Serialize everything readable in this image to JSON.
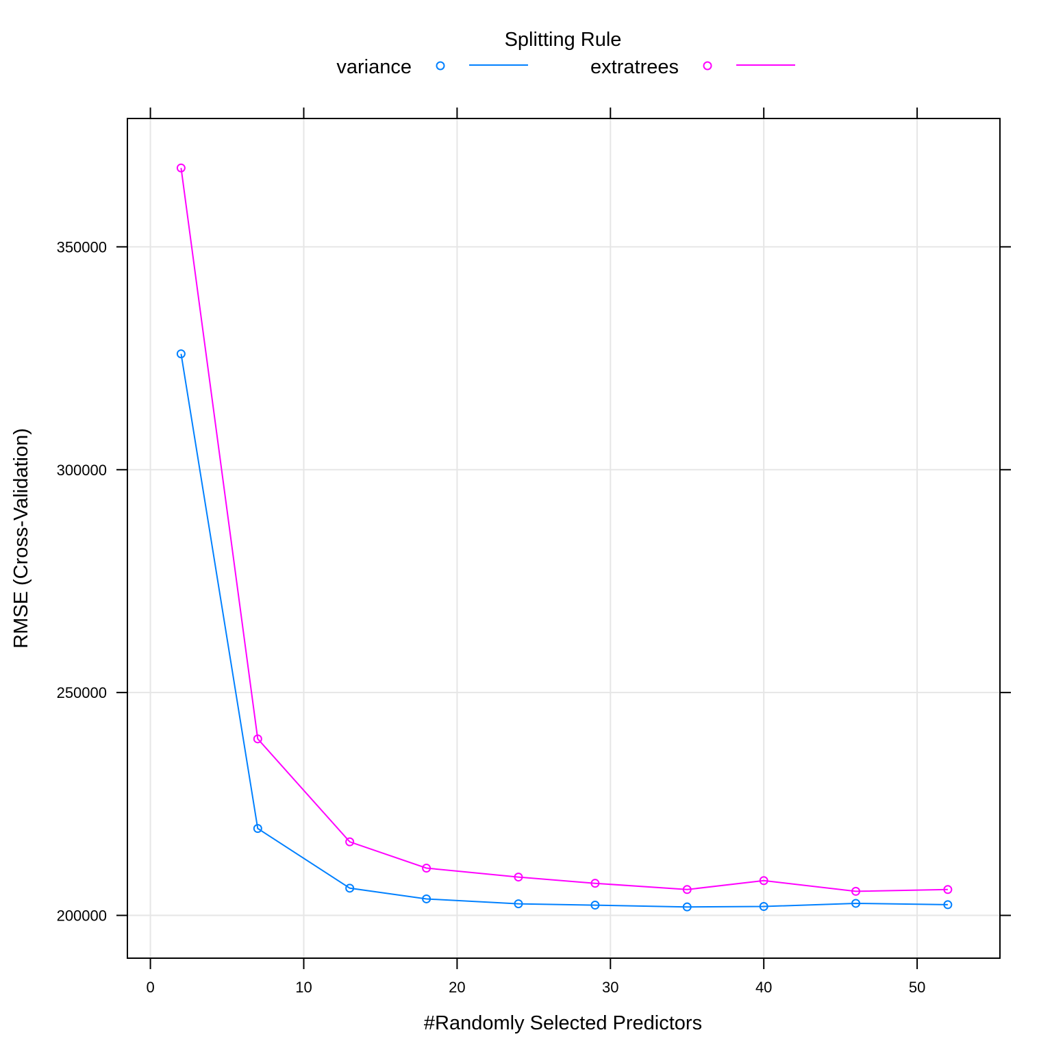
{
  "chart_data": {
    "type": "line",
    "title": "",
    "xlabel": "#Randomly Selected Predictors",
    "ylabel": "RMSE (Cross-Validation)",
    "xlim": [
      -1.5,
      55.4
    ],
    "ylim": [
      190400,
      378800
    ],
    "x_ticks": [
      0,
      10,
      20,
      30,
      40,
      50
    ],
    "y_ticks": [
      200000,
      250000,
      300000,
      350000
    ],
    "grid": true,
    "legend": {
      "title": "Splitting Rule",
      "placement": "top"
    },
    "x": [
      2,
      7,
      13,
      18,
      24,
      29,
      35,
      40,
      46,
      52
    ],
    "series": [
      {
        "name": "variance",
        "color": "#0080ff",
        "values": [
          326000,
          219500,
          206100,
          203700,
          202600,
          202300,
          201900,
          202000,
          202700,
          202400
        ]
      },
      {
        "name": "extratrees",
        "color": "#ff00ff",
        "values": [
          367700,
          239600,
          216500,
          210600,
          208600,
          207200,
          205800,
          207800,
          205400,
          205800
        ]
      }
    ]
  }
}
